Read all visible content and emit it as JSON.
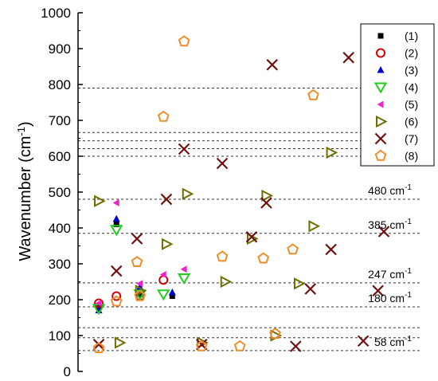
{
  "chart_data": {
    "type": "scatter",
    "ylabel": "Wavenumber (cm",
    "ylabel_superscript": "-1",
    "ylabel_close": ")",
    "ylim": [
      0,
      1000
    ],
    "yticks": [
      0,
      100,
      200,
      300,
      400,
      500,
      600,
      700,
      800,
      900,
      1000
    ],
    "xlim": [
      0,
      10
    ],
    "grid": "dashed horizontal reference lines",
    "reference_lines": [
      58,
      94,
      122,
      180,
      247,
      385,
      480,
      600,
      621,
      643,
      666,
      790
    ],
    "annotations": [
      {
        "base": "480 cm",
        "sup": "-1",
        "y": 480
      },
      {
        "base": "385 cm",
        "sup": "-1",
        "y": 385
      },
      {
        "base": "247 cm",
        "sup": "-1",
        "y": 247
      },
      {
        "base": "180 cm",
        "sup": "-1",
        "y": 180
      },
      {
        "base": "58 cm",
        "sup": "-1",
        "y": 58
      }
    ],
    "legend_position": "top-right",
    "series": [
      {
        "name": "(1)",
        "marker": "square",
        "color": "#000000",
        "filled": true,
        "points": [
          [
            0.3,
            180
          ],
          [
            0.9,
            410
          ],
          [
            1.7,
            215
          ],
          [
            2.8,
            210
          ]
        ]
      },
      {
        "name": "(2)",
        "marker": "circle",
        "color": "#d40000",
        "filled": false,
        "points": [
          [
            0.3,
            190
          ],
          [
            0.9,
            210
          ],
          [
            1.7,
            210
          ],
          [
            2.5,
            255
          ]
        ]
      },
      {
        "name": "(3)",
        "marker": "triangle-up",
        "color": "#0000d0",
        "filled": true,
        "points": [
          [
            0.3,
            170
          ],
          [
            0.9,
            425
          ],
          [
            1.7,
            235
          ],
          [
            2.8,
            220
          ]
        ]
      },
      {
        "name": "(4)",
        "marker": "triangle-down",
        "color": "#22cc22",
        "filled": false,
        "points": [
          [
            0.3,
            175
          ],
          [
            0.9,
            395
          ],
          [
            1.7,
            215
          ],
          [
            2.5,
            215
          ],
          [
            3.2,
            260
          ]
        ]
      },
      {
        "name": "(5)",
        "marker": "triangle-left",
        "color": "#ee22cc",
        "filled": true,
        "points": [
          [
            0.3,
            190
          ],
          [
            0.9,
            470
          ],
          [
            1.7,
            245
          ],
          [
            2.5,
            270
          ],
          [
            3.2,
            285
          ]
        ]
      },
      {
        "name": "(6)",
        "marker": "triangle-right",
        "color": "#6e6e00",
        "filled": false,
        "points": [
          [
            0.3,
            475
          ],
          [
            1.0,
            80
          ],
          [
            1.7,
            225
          ],
          [
            2.6,
            355
          ],
          [
            3.3,
            495
          ],
          [
            3.8,
            80
          ],
          [
            4.6,
            250
          ],
          [
            5.5,
            370
          ],
          [
            6.0,
            490
          ],
          [
            6.3,
            100
          ],
          [
            7.1,
            245
          ],
          [
            7.6,
            405
          ],
          [
            8.2,
            610
          ]
        ]
      },
      {
        "name": "(7)",
        "marker": "x",
        "color": "#6e1010",
        "filled": false,
        "points": [
          [
            0.3,
            75
          ],
          [
            0.9,
            280
          ],
          [
            1.6,
            370
          ],
          [
            2.6,
            480
          ],
          [
            3.2,
            620
          ],
          [
            3.8,
            75
          ],
          [
            4.5,
            580
          ],
          [
            5.5,
            375
          ],
          [
            6.2,
            855
          ],
          [
            6.0,
            470
          ],
          [
            7.0,
            70
          ],
          [
            7.5,
            230
          ],
          [
            8.2,
            340
          ],
          [
            8.8,
            875
          ],
          [
            9.3,
            85
          ],
          [
            9.8,
            225
          ],
          [
            10.0,
            390
          ]
        ]
      },
      {
        "name": "(8)",
        "marker": "pentagon",
        "color": "#f08c28",
        "filled": false,
        "points": [
          [
            0.3,
            65
          ],
          [
            0.9,
            195
          ],
          [
            1.6,
            305
          ],
          [
            1.7,
            210
          ],
          [
            2.5,
            710
          ],
          [
            3.2,
            920
          ],
          [
            3.8,
            70
          ],
          [
            4.5,
            320
          ],
          [
            5.1,
            70
          ],
          [
            5.9,
            315
          ],
          [
            6.3,
            105
          ],
          [
            6.9,
            340
          ],
          [
            7.6,
            770
          ]
        ]
      }
    ]
  }
}
